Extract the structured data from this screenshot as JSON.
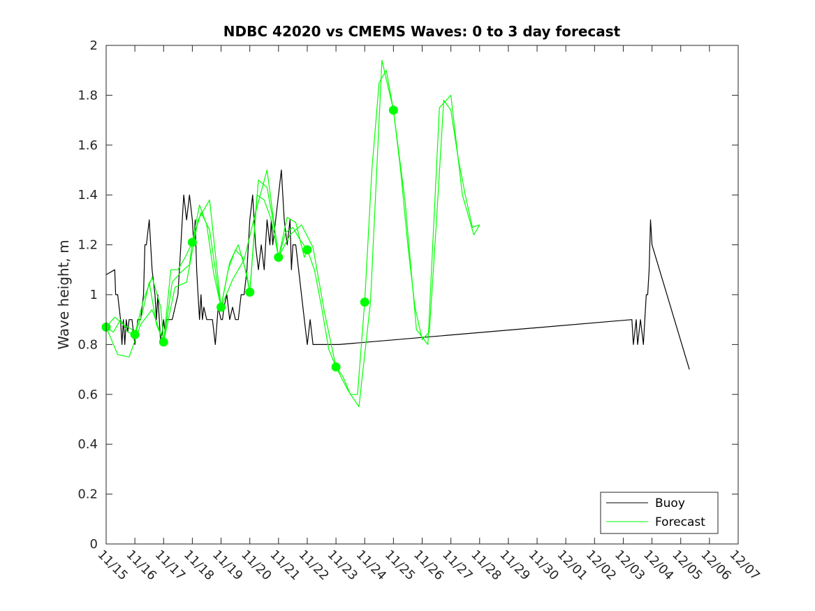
{
  "chart_data": {
    "type": "line",
    "title": "NDBC 42020 vs CMEMS Waves: 0 to 3 day forecast",
    "xlabel": "",
    "ylabel": "Wave height, m",
    "ylim": [
      0,
      2
    ],
    "yticks": [
      "0",
      "0.2",
      "0.4",
      "0.6",
      "0.8",
      "1",
      "1.2",
      "1.4",
      "1.6",
      "1.8",
      "2"
    ],
    "xlim": [
      0,
      22
    ],
    "xticks": [
      "11/15",
      "11/16",
      "11/17",
      "11/18",
      "11/19",
      "11/20",
      "11/21",
      "11/22",
      "11/23",
      "11/24",
      "11/25",
      "11/26",
      "11/27",
      "11/28",
      "11/29",
      "11/30",
      "12/01",
      "12/02",
      "12/03",
      "12/04",
      "12/05",
      "12/06",
      "12/07"
    ],
    "legend_position": "bottom-right",
    "colors": {
      "buoy": "#000000",
      "forecast": "#00ff00",
      "axes": "#262626"
    },
    "series": [
      {
        "name": "Buoy",
        "kind": "line",
        "x": [
          0.0,
          0.3,
          0.33,
          0.4,
          0.5,
          0.55,
          0.6,
          0.65,
          0.7,
          0.75,
          0.8,
          0.9,
          1.0,
          1.1,
          1.2,
          1.3,
          1.35,
          1.4,
          1.5,
          1.6,
          1.7,
          1.75,
          1.8,
          1.9,
          2.0,
          2.05,
          2.1,
          2.2,
          2.3,
          2.5,
          2.6,
          2.65,
          2.7,
          2.8,
          2.9,
          3.0,
          3.05,
          3.1,
          3.15,
          3.2,
          3.25,
          3.3,
          3.35,
          3.4,
          3.5,
          3.6,
          3.7,
          3.8,
          3.9,
          4.0,
          4.05,
          4.1,
          4.2,
          4.3,
          4.4,
          4.5,
          4.6,
          4.7,
          4.8,
          4.9,
          5.0,
          5.1,
          5.2,
          5.3,
          5.4,
          5.5,
          5.55,
          5.6,
          5.7,
          5.75,
          5.8,
          5.9,
          6.0,
          6.1,
          6.2,
          6.3,
          6.4,
          6.45,
          6.5,
          6.6,
          6.7,
          6.8,
          6.9,
          7.0,
          7.1,
          7.2,
          7.3,
          7.4,
          7.5,
          7.6,
          7.7,
          7.75,
          7.8,
          7.9,
          8.0,
          8.1,
          18.3,
          18.35,
          18.45,
          18.5,
          18.6,
          18.7,
          18.75,
          18.8,
          18.85,
          18.9,
          18.95,
          19.0,
          20.3
        ],
        "values": [
          1.08,
          1.1,
          1.0,
          1.0,
          0.9,
          0.8,
          0.9,
          0.8,
          0.9,
          0.85,
          0.9,
          0.9,
          0.8,
          0.9,
          0.9,
          1.0,
          1.2,
          1.2,
          1.3,
          1.1,
          1.0,
          0.9,
          1.0,
          0.8,
          0.9,
          0.85,
          0.9,
          0.9,
          0.9,
          1.0,
          1.2,
          1.3,
          1.4,
          1.3,
          1.4,
          1.3,
          1.2,
          1.3,
          1.1,
          1.0,
          0.9,
          1.0,
          0.9,
          0.95,
          0.9,
          0.9,
          0.9,
          0.8,
          0.95,
          0.9,
          0.9,
          0.95,
          1.0,
          0.9,
          0.95,
          0.9,
          0.9,
          1.0,
          1.0,
          1.1,
          1.3,
          1.4,
          1.2,
          1.1,
          1.2,
          1.1,
          1.2,
          1.3,
          1.2,
          1.3,
          1.2,
          1.3,
          1.4,
          1.5,
          1.3,
          1.2,
          1.3,
          1.1,
          1.2,
          1.2,
          1.1,
          1.0,
          0.9,
          0.8,
          0.9,
          0.8,
          0.8,
          0.8,
          0.8,
          0.8,
          0.8,
          0.8,
          0.8,
          0.8,
          0.8,
          0.8,
          0.9,
          0.8,
          0.9,
          0.8,
          0.9,
          0.8,
          0.9,
          1.0,
          1.0,
          1.1,
          1.3,
          1.2,
          0.7
        ]
      },
      {
        "name": "Forecast",
        "kind": "line",
        "x": [
          0.0,
          0.25,
          0.5,
          0.75,
          1.0,
          1.25,
          1.5,
          1.75,
          2.0,
          2.25,
          2.5,
          2.75,
          3.0,
          3.25,
          3.5,
          3.75,
          4.0,
          4.25,
          4.5,
          4.75,
          5.0,
          5.25,
          5.5,
          5.75,
          6.0,
          6.25,
          6.5,
          6.75,
          7.0,
          7.25,
          7.5,
          7.75,
          8.0,
          8.25,
          8.5,
          8.75,
          9.0,
          9.25,
          9.5,
          9.75,
          10.0,
          10.25,
          10.5,
          10.75,
          11.0,
          11.25,
          11.5,
          11.75,
          12.0,
          12.25,
          12.5,
          12.75,
          13.0
        ],
        "values": [
          0.87,
          0.85,
          0.9,
          0.85,
          0.84,
          0.92,
          1.05,
          0.88,
          0.81,
          1.1,
          1.1,
          1.15,
          1.21,
          1.36,
          1.28,
          1.08,
          0.95,
          1.1,
          1.18,
          1.15,
          1.01,
          1.4,
          1.38,
          1.3,
          1.15,
          1.25,
          1.27,
          1.22,
          1.18,
          1.1,
          0.95,
          0.78,
          0.71,
          0.67,
          0.6,
          0.6,
          0.97,
          1.5,
          1.85,
          1.9,
          1.74,
          1.5,
          1.2,
          0.95,
          0.82,
          0.85,
          1.3,
          1.78,
          1.74,
          1.55,
          1.4,
          1.27,
          1.28
        ]
      },
      {
        "name": "",
        "kind": "line",
        "x": [
          0.0,
          0.3,
          0.6,
          0.9,
          1.0,
          1.3,
          1.6,
          1.9,
          2.0,
          2.3,
          2.6,
          2.9,
          3.0,
          3.3,
          3.6,
          3.9,
          4.0,
          4.3,
          4.6,
          4.9,
          5.0,
          5.3,
          5.6,
          5.9,
          6.0,
          6.3,
          6.6,
          6.9,
          7.0
        ],
        "values": [
          0.87,
          0.91,
          0.88,
          0.86,
          0.84,
          0.98,
          1.07,
          0.95,
          0.81,
          1.05,
          1.09,
          1.12,
          1.21,
          1.33,
          1.26,
          1.02,
          0.95,
          1.13,
          1.2,
          1.08,
          1.01,
          1.46,
          1.43,
          1.24,
          1.15,
          1.31,
          1.29,
          1.15,
          1.18
        ]
      },
      {
        "name": "",
        "kind": "line",
        "x": [
          0.0,
          0.4,
          0.8,
          1.2,
          1.6,
          2.0,
          2.4,
          2.8,
          3.2,
          3.6,
          4.0,
          4.4,
          4.8,
          5.2,
          5.6,
          6.0,
          6.4,
          6.8,
          7.2,
          7.6,
          8.0,
          8.4,
          8.8,
          9.2,
          9.6,
          10.0,
          10.4,
          10.8,
          11.2,
          11.6,
          12.0,
          12.4,
          12.8,
          13.0
        ],
        "values": [
          0.87,
          0.76,
          0.75,
          0.88,
          0.94,
          0.81,
          1.03,
          1.05,
          1.3,
          1.38,
          0.95,
          1.06,
          1.14,
          1.33,
          1.5,
          1.15,
          1.24,
          1.28,
          1.19,
          0.93,
          0.71,
          0.62,
          0.55,
          0.97,
          1.94,
          1.74,
          1.38,
          0.86,
          0.8,
          1.75,
          1.8,
          1.4,
          1.24,
          1.28
        ]
      },
      {
        "name": "",
        "kind": "markers",
        "x": [
          0,
          1,
          2,
          3,
          4,
          5,
          6,
          7,
          8,
          9,
          10
        ],
        "values": [
          0.87,
          0.84,
          0.81,
          1.21,
          0.95,
          1.01,
          1.15,
          1.18,
          0.71,
          0.97,
          1.74
        ]
      }
    ]
  }
}
